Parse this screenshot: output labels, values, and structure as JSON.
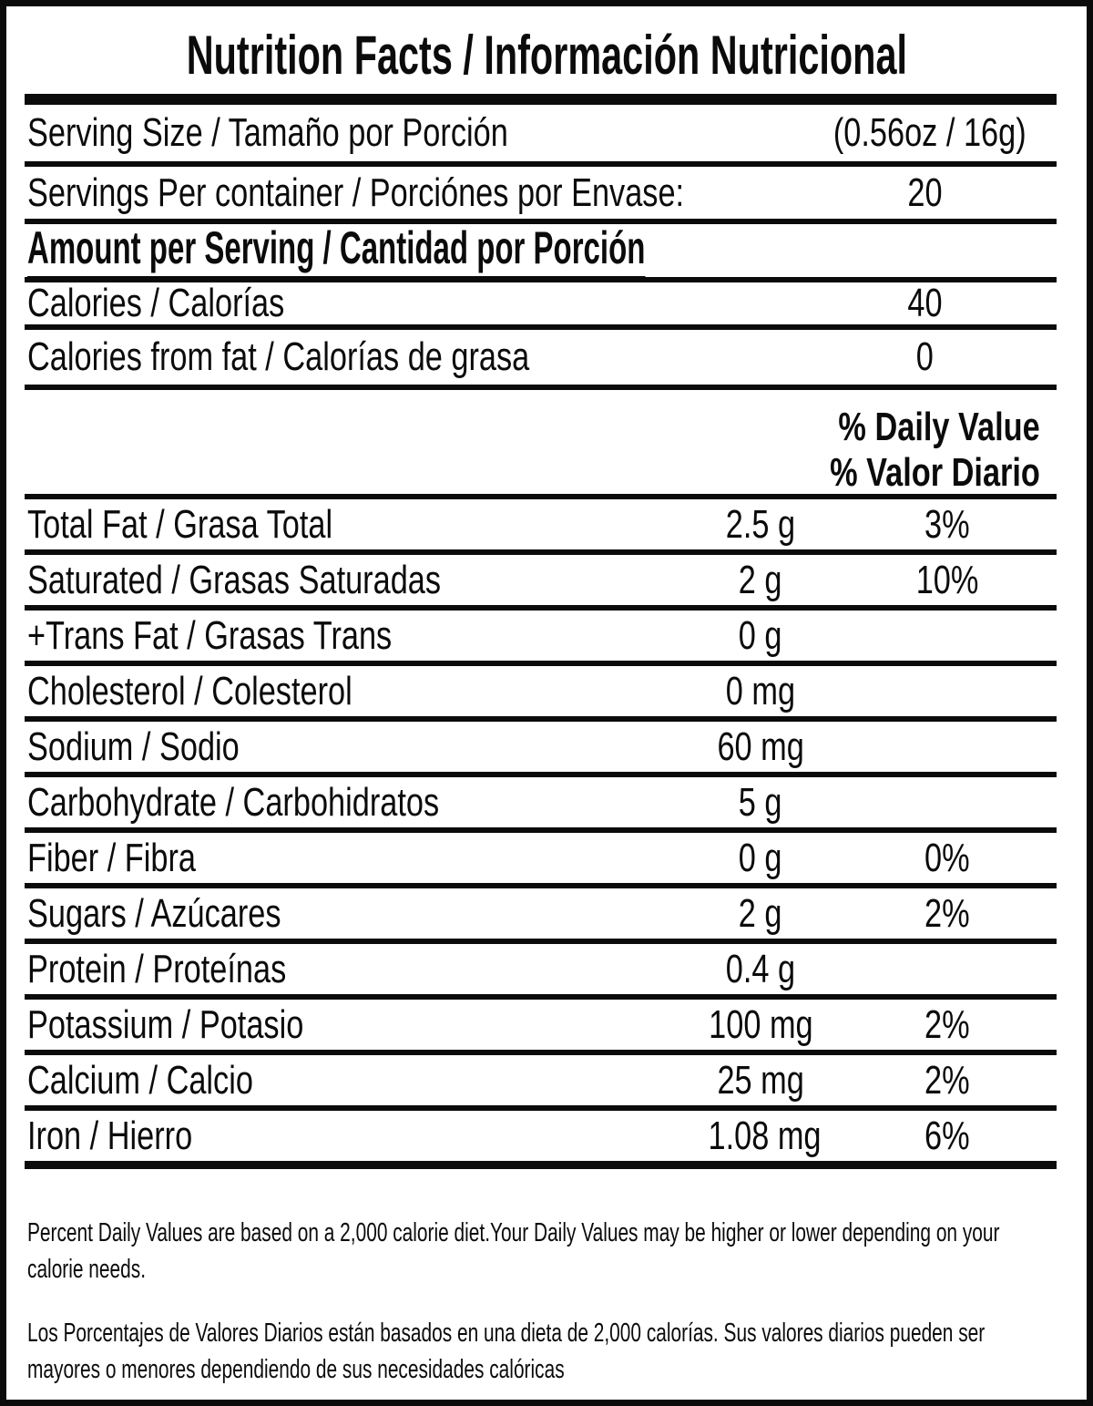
{
  "title": "Nutrition Facts / Información Nutricional",
  "serving_size": {
    "label": "Serving Size / Tamaño por Porción",
    "value": "(0.56oz / 16g)"
  },
  "servings_per_container": {
    "label": "Servings Per container / Porciónes por Envase:",
    "value": "20"
  },
  "amount_heading": "Amount per Serving / Cantidad por Porción",
  "calories": {
    "label": "Calories / Calorías",
    "value": "40"
  },
  "calories_from_fat": {
    "label": "Calories from fat / Calorías de grasa",
    "value": "0"
  },
  "dv_header": {
    "line1": "% Daily Value",
    "line2": "% Valor Diario"
  },
  "nutrients": [
    {
      "label": "Total Fat / Grasa Total",
      "amount": "2.5 g",
      "dv": "3%"
    },
    {
      "label": "Saturated / Grasas Saturadas",
      "amount": "2 g",
      "dv": "10%"
    },
    {
      "label": "+Trans Fat / Grasas Trans",
      "amount": "0 g",
      "dv": ""
    },
    {
      "label": "Cholesterol / Colesterol",
      "amount": "0 mg",
      "dv": ""
    },
    {
      "label": "Sodium / Sodio",
      "amount": "60 mg",
      "dv": ""
    },
    {
      "label": "Carbohydrate / Carbohidratos",
      "amount": "5 g",
      "dv": ""
    },
    {
      "label": "Fiber / Fibra",
      "amount": "0 g",
      "dv": "0%"
    },
    {
      "label": "Sugars / Azúcares",
      "amount": "2 g",
      "dv": "2%"
    },
    {
      "label": "Protein / Proteínas",
      "amount": "0.4 g",
      "dv": ""
    },
    {
      "label": "Potassium / Potasio",
      "amount": "100 mg",
      "dv": "2%"
    },
    {
      "label": "Calcium / Calcio",
      "amount": "25 mg",
      "dv": "2%"
    },
    {
      "label": "Iron / Hierro",
      "amount": "1.08 mg",
      "dv": "6%"
    }
  ],
  "footnotes": {
    "english": "Percent Daily Values are based on a 2,000 calorie diet.Your Daily Values may be higher or lower depending on your calorie needs.",
    "spanish": "Los Porcentajes de Valores Diarios están basados en una dieta de 2,000 calorías. Sus valores diarios pueden ser mayores o menores dependiendo de sus necesidades calóricas"
  },
  "colors": {
    "ink": "#0b0b0b",
    "background": "#ffffff"
  }
}
